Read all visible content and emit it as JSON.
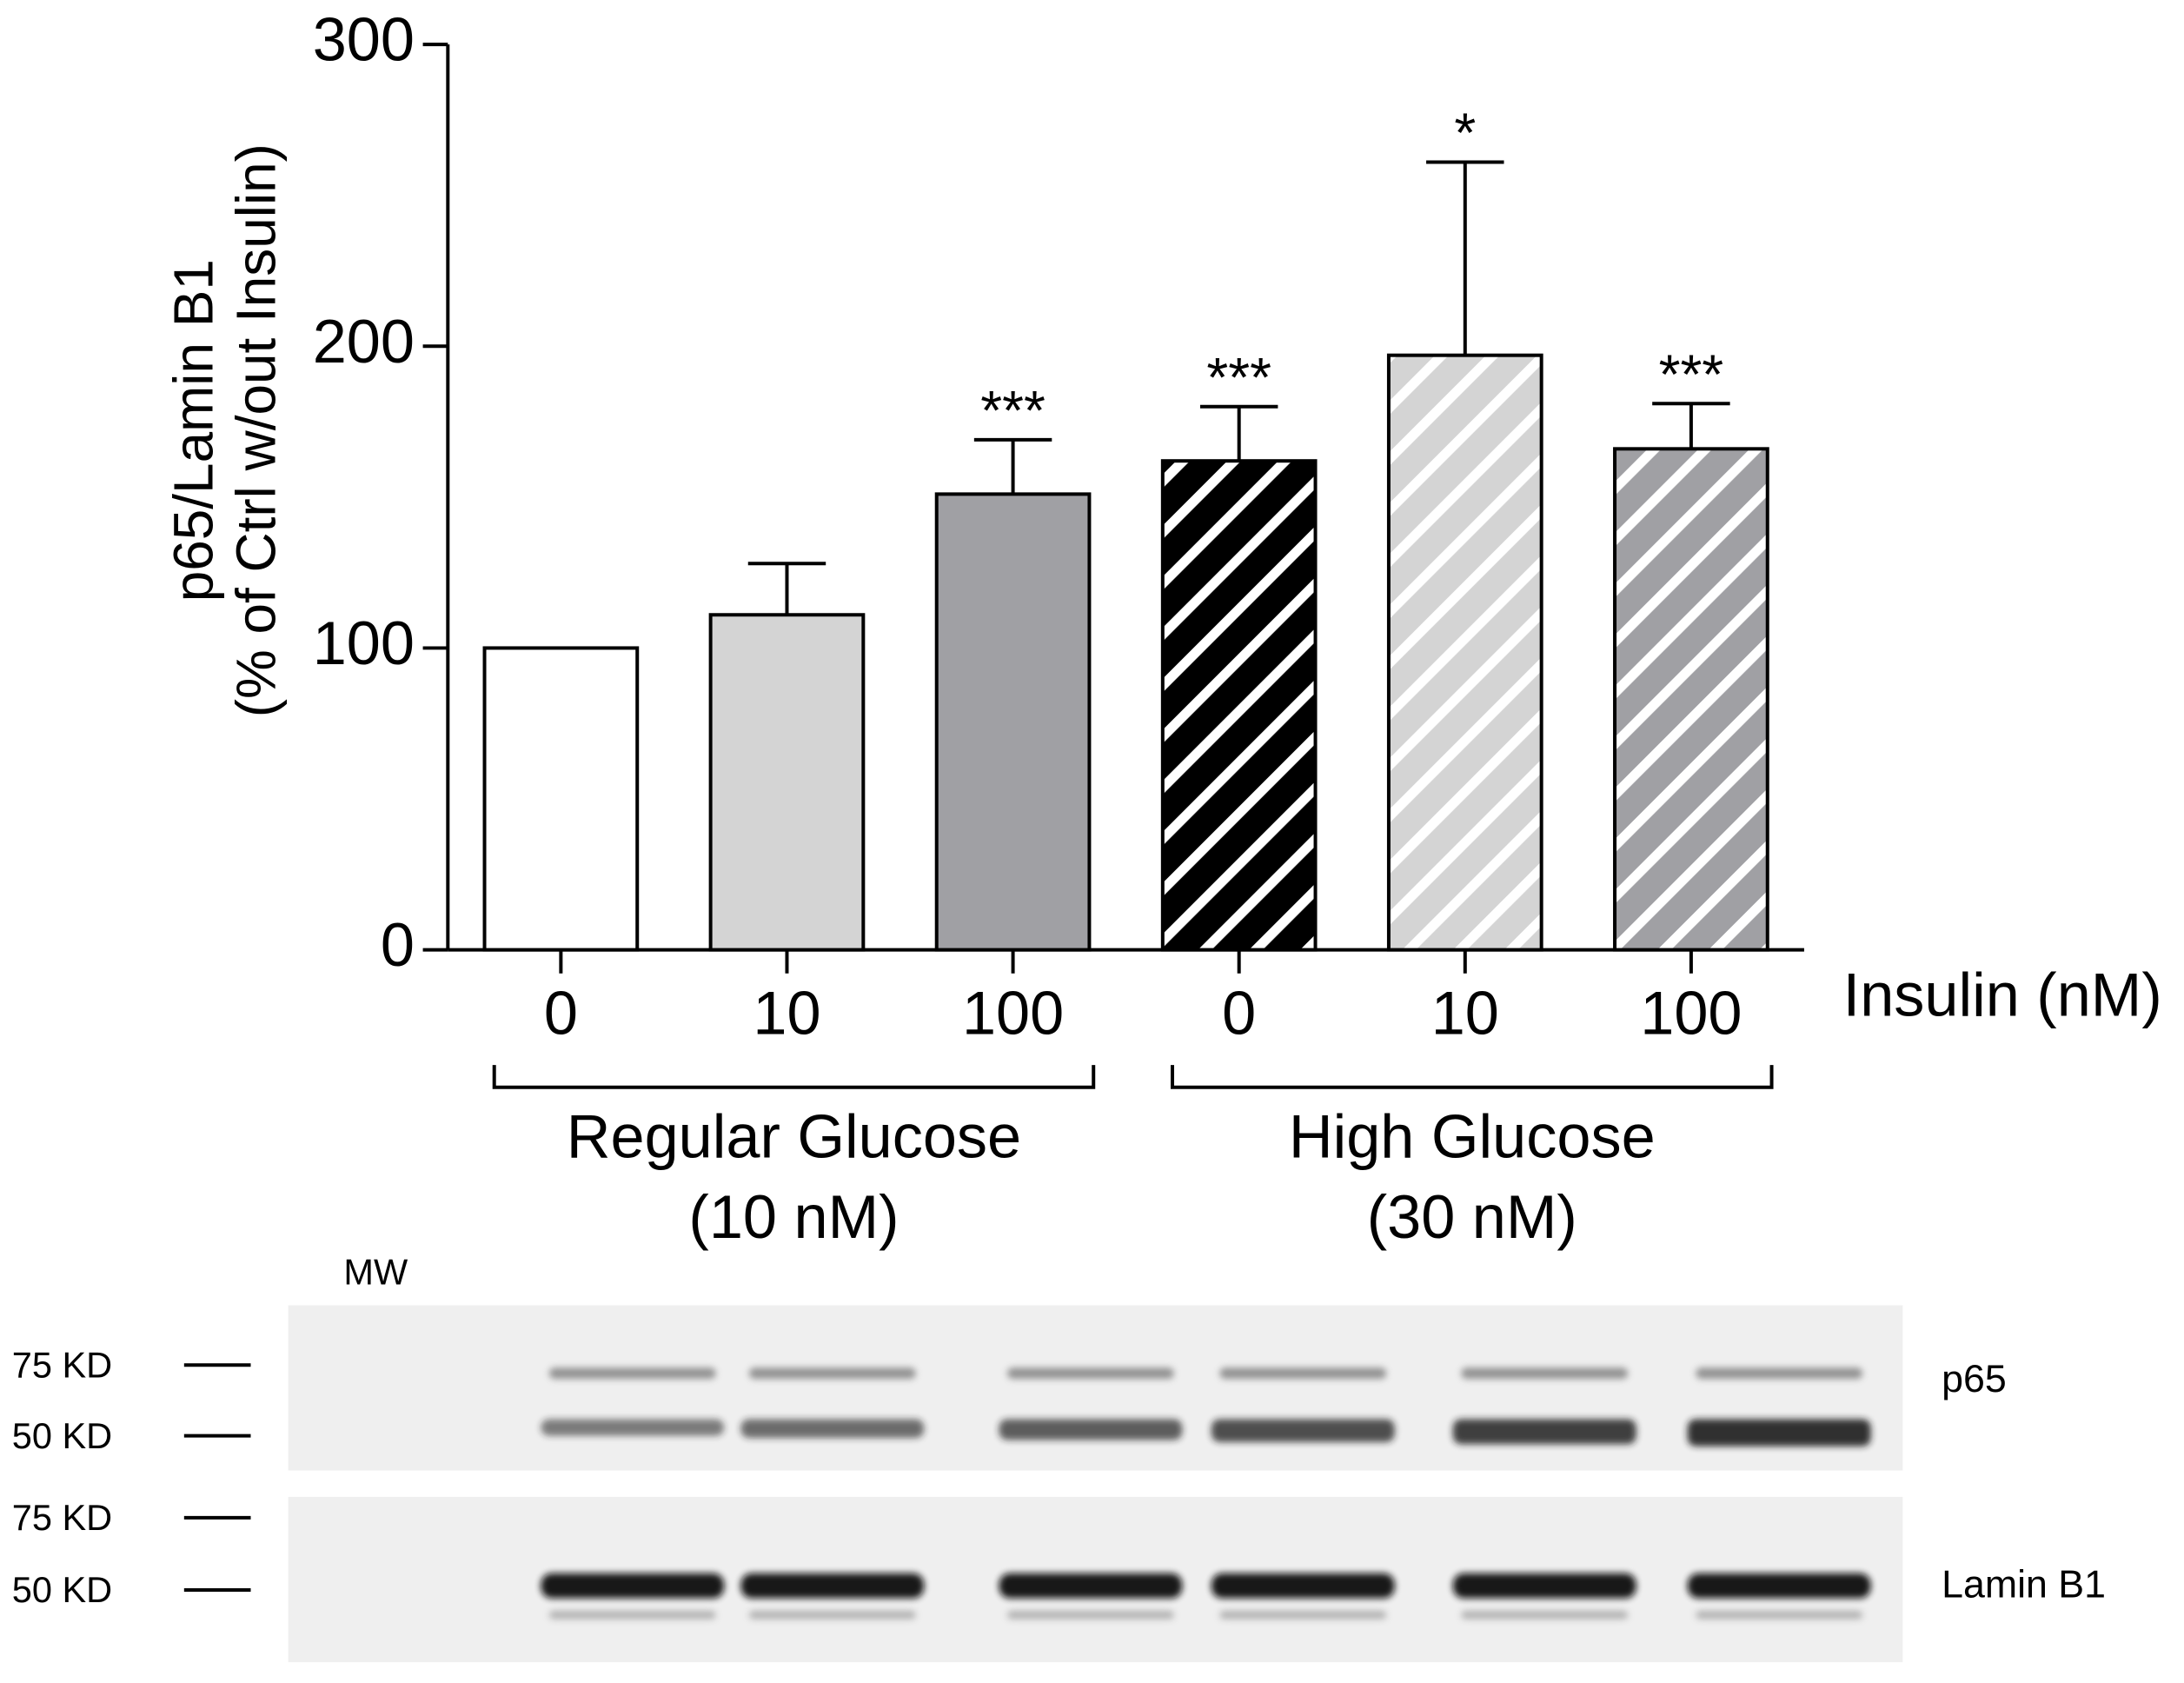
{
  "chart_data": {
    "type": "bar",
    "y_label": [
      "p65/Lamin B1",
      "(% of Ctrl w/out Insulin)"
    ],
    "x_label": "Insulin (nM)",
    "categories": [
      "0",
      "10",
      "100",
      "0",
      "10",
      "100"
    ],
    "values": [
      100,
      111,
      151,
      162,
      197,
      166
    ],
    "errors": [
      null,
      17,
      18,
      18,
      64,
      15
    ],
    "annotations": [
      null,
      null,
      "***",
      "***",
      "*",
      "***"
    ],
    "colors": [
      "#ffffff",
      "#d4d4d4",
      "#a0a0a4",
      "#000000",
      "#d4d4d4",
      "#a0a0a4"
    ],
    "hatch": [
      false,
      false,
      false,
      true,
      true,
      true
    ],
    "groups": [
      {
        "label": [
          "Regular Glucose",
          "(10 nM)"
        ],
        "start": 0,
        "end": 2
      },
      {
        "label": [
          "High Glucose",
          "(30 nM)"
        ],
        "start": 3,
        "end": 5
      }
    ],
    "ylim": [
      0,
      300
    ],
    "yticks": [
      0,
      100,
      200,
      300
    ]
  },
  "blot": {
    "mw_label": "MW",
    "panels": [
      {
        "label": "p65",
        "markers": [
          "75 KD",
          "50 KD"
        ]
      },
      {
        "label": "Lamin B1",
        "markers": [
          "75 KD",
          "50 KD"
        ]
      }
    ]
  }
}
